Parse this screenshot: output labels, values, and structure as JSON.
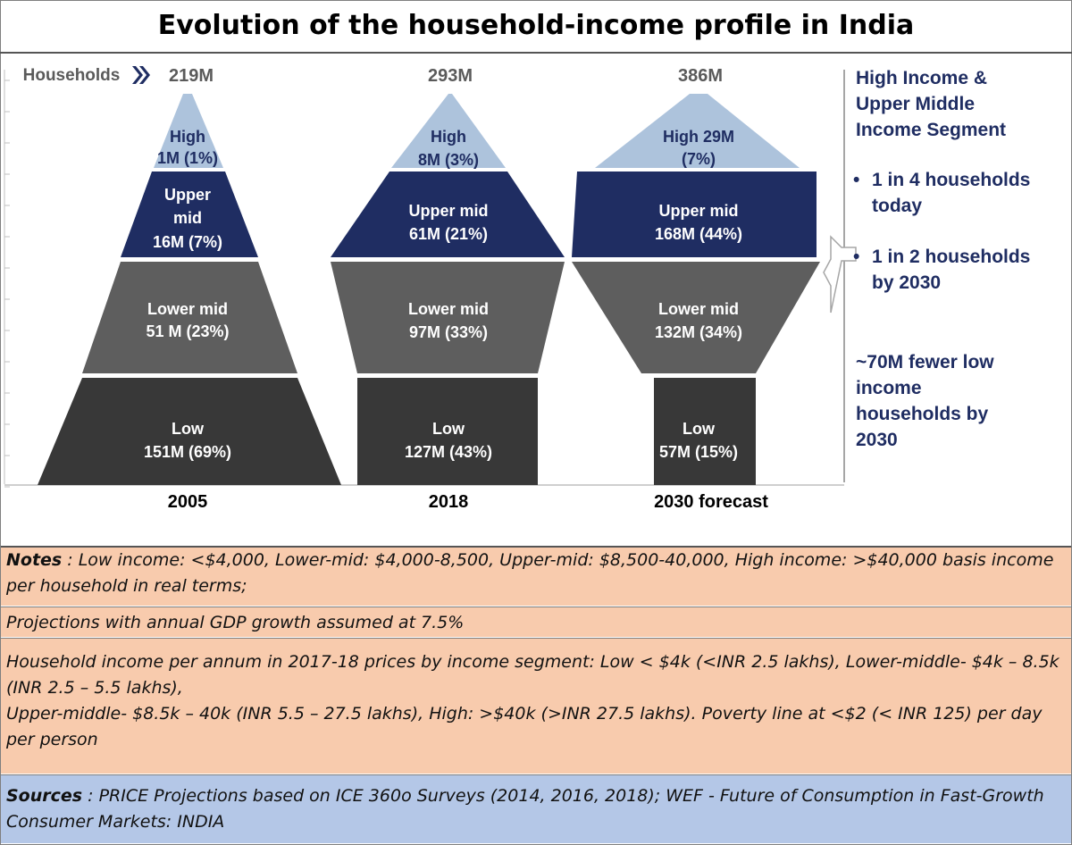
{
  "title": "Evolution of the household-income profile in India",
  "households_label": "Households",
  "colors": {
    "high": "#adc3dc",
    "upper_mid": "#1f2d62",
    "lower_mid": "#5e5e5e",
    "low": "#383838",
    "side_text": "#1f2d62",
    "notes_bg": "#f8cbad",
    "sources_bg": "#b4c7e7"
  },
  "chart_data": {
    "type": "bar",
    "unit": "M",
    "categories": [
      "2005",
      "2018",
      "2030 forecast"
    ],
    "totals": [
      "219M",
      "293M",
      "386M"
    ],
    "segments": [
      "High",
      "Upper mid",
      "Lower mid",
      "Low"
    ],
    "series": [
      {
        "name": "High",
        "values": [
          1,
          8,
          29
        ],
        "shares": [
          1,
          3,
          7
        ],
        "labels": [
          [
            "High",
            "1M (1%)"
          ],
          [
            "High",
            "8M (3%)"
          ],
          [
            "High 29M",
            "(7%)"
          ]
        ]
      },
      {
        "name": "Upper mid",
        "values": [
          16,
          61,
          168
        ],
        "shares": [
          7,
          21,
          44
        ],
        "labels": [
          [
            "Upper",
            "mid",
            "16M (7%)"
          ],
          [
            "Upper mid",
            "61M (21%)"
          ],
          [
            "Upper mid",
            "168M (44%)"
          ]
        ]
      },
      {
        "name": "Lower mid",
        "values": [
          51,
          97,
          132
        ],
        "shares": [
          23,
          33,
          34
        ],
        "labels": [
          [
            "Lower mid",
            "51 M (23%)"
          ],
          [
            "Lower mid",
            "97M (33%)"
          ],
          [
            "Lower mid",
            "132M (34%)"
          ]
        ]
      },
      {
        "name": "Low",
        "values": [
          151,
          127,
          57
        ],
        "shares": [
          69,
          43,
          15
        ],
        "labels": [
          [
            "Low",
            "151M (69%)"
          ],
          [
            "Low",
            "127M (43%)"
          ],
          [
            "Low",
            "57M (15%)"
          ]
        ]
      }
    ]
  },
  "side_panel": {
    "heading": [
      "High Income &",
      "Upper Middle",
      "Income Segment"
    ],
    "bullet1": [
      "1 in 4 households",
      "today"
    ],
    "bullet2": [
      "1 in 2 households",
      "by 2030"
    ],
    "bottom": [
      "~70M fewer low",
      "income",
      "households by",
      "2030"
    ]
  },
  "notes": {
    "notes_label": "Notes",
    "notes_text": " : Low income: <$4,000, Lower-mid: $4,000-8,500, Upper-mid: $8,500-40,000, High income: >$40,000 basis income per household in real terms;",
    "projections": "Projections with annual GDP growth assumed at 7.5%",
    "segments_1": "Household income per annum in 2017-18 prices by income segment: Low < $4k (<INR 2.5 lakhs), Lower-middle- $4k – 8.5k (INR 2.5 – 5.5 lakhs),",
    "segments_2": "Upper-middle- $8.5k – 40k (INR 5.5 – 27.5 lakhs), High: >$40k (>INR 27.5 lakhs). Poverty line at <$2 (< INR 125) per day per person",
    "sources_label": "Sources",
    "sources_text": " : PRICE Projections based on ICE 360o Surveys (2014, 2016, 2018); WEF - Future of Consumption in Fast-Growth Consumer Markets: INDIA"
  }
}
